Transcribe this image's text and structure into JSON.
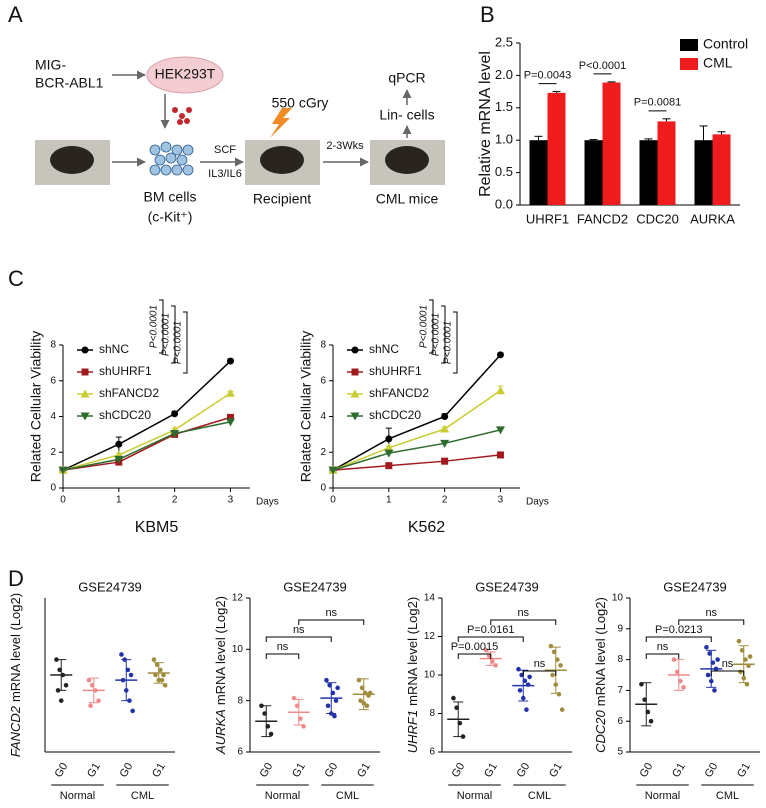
{
  "panel_labels": [
    "A",
    "B",
    "C",
    "D"
  ],
  "diagram": {
    "vector": [
      "MIG-",
      "BCR-ABL1"
    ],
    "cell_line": "HEK293T",
    "donor_cells": [
      "BM cells",
      "(c-Kit⁺)"
    ],
    "cytokines": [
      "SCF",
      "IL3/IL6"
    ],
    "irradiation": "550 cGry",
    "duration": "2-3Wks",
    "recipient": "Recipient",
    "cml": "CML mice",
    "sorted": "Lin- cells",
    "assay": "qPCR"
  },
  "chart_data": [
    {
      "type": "bar",
      "ylabel": "Relative mRNA level",
      "categories": [
        "UHRF1",
        "FANCD2",
        "CDC20",
        "AURKA"
      ],
      "series": [
        {
          "name": "Control",
          "color": "#000000",
          "values": [
            1,
            1,
            1,
            1
          ],
          "errors": [
            0.06,
            0.01,
            0.02,
            0.22
          ]
        },
        {
          "name": "CML",
          "color": "#ee1c1c",
          "values": [
            1.73,
            1.89,
            1.29,
            1.09
          ],
          "errors": [
            0.02,
            0.01,
            0.04,
            0.04
          ]
        }
      ],
      "ylim": [
        0,
        2.5
      ],
      "yticks": [
        {
          "value": 0,
          "label": "0.0"
        },
        0.5,
        {
          "value": 1,
          "label": "1.0"
        },
        1.5,
        {
          "value": 2,
          "label": "2.0"
        },
        2.5
      ],
      "annotations": [
        {
          "label": "P=0.0043",
          "category": "UHRF1"
        },
        {
          "label": "P<0.0001",
          "category": "FANCD2"
        },
        {
          "label": "P=0.0081",
          "category": "CDC20"
        }
      ]
    },
    {
      "type": "line",
      "title": "KBM5",
      "xlabel": "Days",
      "ylabel": "Related Cellular Viability",
      "x": [
        0,
        1,
        2,
        3
      ],
      "xlim": [
        0,
        3.35
      ],
      "xticks": [
        0,
        1,
        2,
        3
      ],
      "ylim": [
        0,
        8
      ],
      "yticks": [
        0,
        2,
        4,
        6,
        8
      ],
      "series": [
        {
          "name": "shNC",
          "color": "#000000",
          "marker": "circle",
          "values": [
            1,
            2.45,
            4.15,
            7.1
          ],
          "errors": [
            0,
            0.4,
            0.15,
            0.12
          ]
        },
        {
          "name": "shUHRF1",
          "color": "#a31a1e",
          "marker": "square",
          "values": [
            1,
            1.45,
            3.0,
            3.95
          ],
          "errors": [
            0,
            0.1,
            0.1,
            0.15
          ]
        },
        {
          "name": "shFANCD2",
          "color": "#c9cc33",
          "marker": "triangle-up",
          "values": [
            1,
            1.85,
            3.25,
            5.3
          ],
          "errors": [
            0,
            0.1,
            0.1,
            0.1
          ]
        },
        {
          "name": "shCDC20",
          "color": "#2e6b2e",
          "marker": "triangle-down",
          "values": [
            1,
            1.6,
            3.05,
            3.7
          ],
          "errors": [
            0,
            0.1,
            0.1,
            0.15
          ]
        }
      ],
      "annotations": [
        {
          "label": "P<0.0001",
          "series": "shUHRF1"
        },
        {
          "label": "P<0.0001",
          "series": "shFANCD2"
        },
        {
          "label": "P<0.0001",
          "series": "shCDC20"
        }
      ]
    },
    {
      "type": "line",
      "title": "K562",
      "xlabel": "Days",
      "ylabel": "Related Cellular Viability",
      "x": [
        0,
        1,
        2,
        3
      ],
      "xlim": [
        0,
        3.35
      ],
      "xticks": [
        0,
        1,
        2,
        3
      ],
      "ylim": [
        0,
        8
      ],
      "yticks": [
        0,
        2,
        4,
        6,
        8
      ],
      "series": [
        {
          "name": "shNC",
          "color": "#000000",
          "marker": "circle",
          "values": [
            1,
            2.75,
            4.0,
            7.45
          ],
          "errors": [
            0,
            0.6,
            0.15,
            0.1
          ]
        },
        {
          "name": "shUHRF1",
          "color": "#a31a1e",
          "marker": "square",
          "values": [
            1,
            1.25,
            1.5,
            1.85
          ],
          "errors": [
            0,
            0.05,
            0.05,
            0.08
          ]
        },
        {
          "name": "shFANCD2",
          "color": "#c9cc33",
          "marker": "triangle-up",
          "values": [
            1,
            2.25,
            3.3,
            5.45
          ],
          "errors": [
            0,
            0.08,
            0.1,
            0.25
          ]
        },
        {
          "name": "shCDC20",
          "color": "#2e6b2e",
          "marker": "triangle-down",
          "values": [
            1,
            1.95,
            2.5,
            3.25
          ],
          "errors": [
            0,
            0.05,
            0.05,
            0.08
          ]
        }
      ],
      "annotations": [
        {
          "label": "P<0.0001",
          "series": "shUHRF1"
        },
        {
          "label": "P<0.0001",
          "series": "shFANCD2"
        },
        {
          "label": "P<0.0001",
          "series": "shCDC20"
        }
      ]
    },
    {
      "type": "dot",
      "title": "GSE24739",
      "ylabel_gene": "FANCD2",
      "ylabel": "mRNA level (Log2)",
      "categories": [
        "G0",
        "G1",
        "G0",
        "G1"
      ],
      "groups": [
        "Normal",
        "CML"
      ],
      "colors": [
        "#222222",
        "#f08a8a",
        "#2233aa",
        "#a08c3c"
      ],
      "ylim": [
        3.7,
        5.2
      ],
      "points": [
        [
          4.6,
          4.5,
          4.45,
          4.35,
          4.3,
          4.2
        ],
        [
          4.4,
          4.35,
          4.3,
          4.2,
          4.15
        ],
        [
          4.65,
          4.6,
          4.5,
          4.45,
          4.4,
          4.3,
          4.2,
          4.1
        ],
        [
          4.6,
          4.55,
          4.5,
          4.45,
          4.45,
          4.4,
          4.4,
          4.35
        ]
      ],
      "means": [
        4.45,
        4.3,
        4.4,
        4.47
      ],
      "sd": [
        0.15,
        0.12,
        0.2,
        0.1
      ],
      "comparisons": []
    },
    {
      "type": "dot",
      "title": "GSE24739",
      "ylabel_gene": "AURKA",
      "ylabel": "mRNA level (Log2)",
      "categories": [
        "G0",
        "G1",
        "G0",
        "G1"
      ],
      "groups": [
        "Normal",
        "CML"
      ],
      "colors": [
        "#222222",
        "#f08a8a",
        "#2233aa",
        "#a08c3c"
      ],
      "ylim": [
        6,
        12
      ],
      "yticks": [
        6,
        8,
        10,
        12
      ],
      "points": [
        [
          7.8,
          7.5,
          7.0,
          6.7
        ],
        [
          8.1,
          7.8,
          7.3,
          7.0
        ],
        [
          8.8,
          8.6,
          8.3,
          8.0,
          7.8,
          7.5,
          7.4,
          8.5
        ],
        [
          8.8,
          8.5,
          8.3,
          8.2,
          8.0,
          7.9,
          7.8,
          8.3
        ]
      ],
      "means": [
        7.2,
        7.55,
        8.1,
        8.25
      ],
      "sd": [
        0.6,
        0.5,
        0.6,
        0.6
      ],
      "comparisons": [
        {
          "between": [
            0,
            1
          ],
          "label": "ns"
        },
        {
          "between": [
            0,
            2
          ],
          "label": "ns"
        },
        {
          "between": [
            1,
            3
          ],
          "label": "ns"
        }
      ]
    },
    {
      "type": "dot",
      "title": "GSE24739",
      "ylabel_gene": "UHRF1",
      "ylabel": "mRNA level (Log2)",
      "categories": [
        "G0",
        "G1",
        "G0",
        "G1"
      ],
      "groups": [
        "Normal",
        "CML"
      ],
      "colors": [
        "#222222",
        "#f08a8a",
        "#2233aa",
        "#a08c3c"
      ],
      "ylim": [
        6,
        14
      ],
      "yticks": [
        6,
        8,
        10,
        12,
        14
      ],
      "points": [
        [
          8.8,
          8.3,
          7.5,
          6.8
        ],
        [
          11.3,
          11.0,
          10.7,
          10.5
        ],
        [
          10.3,
          10.0,
          9.7,
          9.5,
          9.2,
          8.8,
          8.2,
          9.9
        ],
        [
          11.5,
          11.2,
          10.8,
          10.5,
          10.0,
          9.5,
          9.0,
          8.2
        ]
      ],
      "means": [
        7.7,
        10.85,
        9.45,
        10.25
      ],
      "sd": [
        0.9,
        0.35,
        0.8,
        1.2
      ],
      "comparisons": [
        {
          "between": [
            2,
            3
          ],
          "label": "ns"
        },
        {
          "between": [
            0,
            1
          ],
          "label": "P=0.0015"
        },
        {
          "between": [
            0,
            2
          ],
          "label": "P=0.0161"
        },
        {
          "between": [
            1,
            3
          ],
          "label": "ns"
        }
      ]
    },
    {
      "type": "dot",
      "title": "GSE24739",
      "ylabel_gene": "CDC20",
      "ylabel": "mRNA level (Log2)",
      "categories": [
        "G0",
        "G1",
        "G0",
        "G1"
      ],
      "groups": [
        "Normal",
        "CML"
      ],
      "colors": [
        "#222222",
        "#f08a8a",
        "#2233aa",
        "#a08c3c"
      ],
      "ylim": [
        5,
        10
      ],
      "yticks": [
        5,
        6,
        7,
        8,
        9,
        10
      ],
      "points": [
        [
          7.2,
          6.7,
          6.3,
          6.0
        ],
        [
          8.0,
          7.6,
          7.3,
          7.1
        ],
        [
          8.4,
          8.2,
          7.9,
          7.7,
          7.5,
          7.3,
          7.0,
          8.0
        ],
        [
          8.6,
          8.3,
          8.0,
          7.8,
          7.6,
          7.4,
          7.2,
          8.1
        ]
      ],
      "means": [
        6.55,
        7.5,
        7.7,
        7.85
      ],
      "sd": [
        0.7,
        0.5,
        0.6,
        0.6
      ],
      "comparisons": [
        {
          "between": [
            2,
            3
          ],
          "label": "ns"
        },
        {
          "between": [
            0,
            1
          ],
          "label": "ns"
        },
        {
          "between": [
            0,
            2
          ],
          "label": "P=0.0213"
        },
        {
          "between": [
            1,
            3
          ],
          "label": "ns"
        }
      ]
    }
  ]
}
